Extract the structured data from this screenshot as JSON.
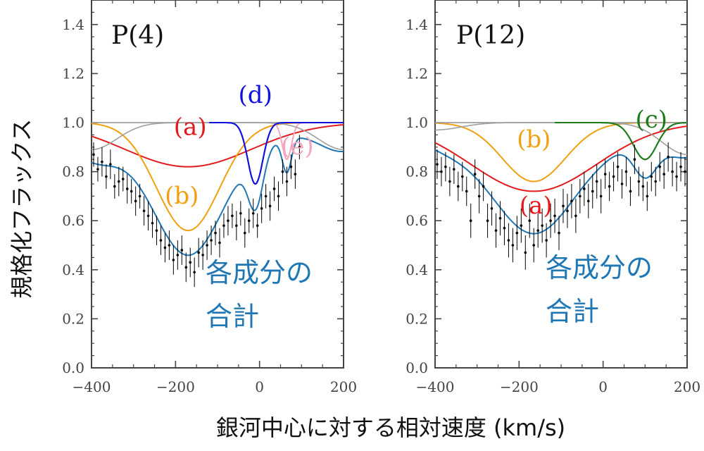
{
  "ylabel": "規格化フラックス",
  "xlabel": "銀河中心に対する相対速度 (km/s)",
  "colors": {
    "sum": "#1f77b4",
    "a": "#e31a1c",
    "b": "#f0a010",
    "c": "#1a7d1a",
    "d": "#1010e0",
    "e": "#f4a6bf",
    "continuum": "#a0a0a0",
    "data": "#000000",
    "frame": "#444444"
  },
  "chart_data": [
    {
      "type": "line",
      "title": "P(4)",
      "xlim": [
        -400,
        200
      ],
      "ylim": [
        0.0,
        1.5
      ],
      "xticks": [
        -400,
        -200,
        0,
        200
      ],
      "xtick_labels": [
        "−400",
        "−200",
        "0",
        "200"
      ],
      "yticks": [
        0.0,
        0.2,
        0.4,
        0.6,
        0.8,
        1.0,
        1.2,
        1.4
      ],
      "ytick_labels": [
        "0.0",
        "0.2",
        "0.4",
        "0.6",
        "0.8",
        "1.0",
        "1.2",
        "1.4"
      ],
      "grid": false,
      "components": [
        {
          "id": "a",
          "label": "(a)",
          "center": -170,
          "depth": 0.18,
          "sigma": 150,
          "range": [
            -400,
            200
          ],
          "label_at": [
            -165,
            0.95
          ],
          "label_color": "a"
        },
        {
          "id": "b",
          "label": "(b)",
          "center": -170,
          "depth": 0.44,
          "sigma": 75,
          "range": [
            -400,
            200
          ],
          "label_at": [
            -185,
            0.67
          ],
          "label_color": "b"
        },
        {
          "id": "d",
          "label": "(d)",
          "center": -10,
          "depth": 0.25,
          "sigma": 18,
          "range": [
            -120,
            200
          ],
          "label_at": [
            -10,
            1.08
          ],
          "label_color": "d"
        },
        {
          "id": "e",
          "label": "(e)",
          "center": 65,
          "depth": 0.15,
          "sigma": 11,
          "range": [
            20,
            200
          ],
          "label_at": [
            90,
            0.87
          ],
          "label_color": "e"
        },
        {
          "id": "cont",
          "label": "",
          "center": -400,
          "depth": 0.11,
          "sigma": 60,
          "range": [
            -400,
            200
          ],
          "label_at": null,
          "label_color": "continuum"
        },
        {
          "id": "cont2",
          "label": "",
          "center": 200,
          "depth": 0.11,
          "sigma": 60,
          "range": [
            -400,
            200
          ],
          "label_at": null,
          "label_color": "continuum"
        }
      ],
      "sum_label": [
        "各成分の",
        "合計"
      ],
      "data_points": {
        "x": [
          -395,
          -385,
          -375,
          -365,
          -355,
          -345,
          -335,
          -325,
          -315,
          -305,
          -295,
          -285,
          -275,
          -265,
          -255,
          -245,
          -235,
          -225,
          -215,
          -205,
          -195,
          -185,
          -175,
          -165,
          -155,
          -145,
          -135,
          -125,
          -115,
          -105,
          -95,
          -85,
          -75,
          -65,
          -55,
          -45,
          -35,
          -25,
          -15,
          -5,
          5,
          15,
          25,
          35,
          45,
          55,
          65,
          75,
          85,
          95
        ],
        "y": [
          0.87,
          0.81,
          0.84,
          0.78,
          0.83,
          0.74,
          0.76,
          0.77,
          0.73,
          0.72,
          0.68,
          0.7,
          0.64,
          0.62,
          0.59,
          0.56,
          0.52,
          0.49,
          0.5,
          0.44,
          0.46,
          0.48,
          0.41,
          0.43,
          0.39,
          0.47,
          0.46,
          0.5,
          0.52,
          0.55,
          0.51,
          0.58,
          0.6,
          0.62,
          0.58,
          0.63,
          0.55,
          0.6,
          0.63,
          0.58,
          0.65,
          0.7,
          0.66,
          0.73,
          0.7,
          0.8,
          0.76,
          0.82,
          0.79,
          0.9
        ],
        "err": [
          0.05,
          0.05,
          0.06,
          0.05,
          0.06,
          0.05,
          0.06,
          0.05,
          0.06,
          0.05,
          0.06,
          0.05,
          0.06,
          0.06,
          0.06,
          0.06,
          0.06,
          0.06,
          0.06,
          0.06,
          0.06,
          0.06,
          0.06,
          0.06,
          0.06,
          0.06,
          0.06,
          0.06,
          0.06,
          0.05,
          0.06,
          0.05,
          0.06,
          0.05,
          0.06,
          0.05,
          0.06,
          0.05,
          0.06,
          0.05,
          0.06,
          0.05,
          0.06,
          0.05,
          0.06,
          0.05,
          0.06,
          0.05,
          0.06,
          0.05
        ]
      }
    },
    {
      "type": "line",
      "title": "P(12)",
      "xlim": [
        -400,
        200
      ],
      "ylim": [
        0.0,
        1.5
      ],
      "xticks": [
        -400,
        -200,
        0,
        200
      ],
      "xtick_labels": [
        "−400",
        "−200",
        "0",
        "200"
      ],
      "yticks": [
        0.0,
        0.2,
        0.4,
        0.6,
        0.8,
        1.0,
        1.2,
        1.4
      ],
      "ytick_labels": [
        "0.0",
        "0.2",
        "0.4",
        "0.6",
        "0.8",
        "1.0",
        "1.2",
        "1.4"
      ],
      "grid": false,
      "components": [
        {
          "id": "a",
          "label": "(a)",
          "center": -165,
          "depth": 0.28,
          "sigma": 150,
          "range": [
            -400,
            200
          ],
          "label_at": [
            -160,
            0.63
          ],
          "label_color": "a"
        },
        {
          "id": "b",
          "label": "(b)",
          "center": -165,
          "depth": 0.24,
          "sigma": 75,
          "range": [
            -400,
            200
          ],
          "label_at": [
            -165,
            0.9
          ],
          "label_color": "b"
        },
        {
          "id": "c",
          "label": "(c)",
          "center": 100,
          "depth": 0.15,
          "sigma": 28,
          "range": [
            -115,
            200
          ],
          "label_at": [
            115,
            0.98
          ],
          "label_color": "c"
        },
        {
          "id": "cont",
          "label": "",
          "center": -400,
          "depth": 0.03,
          "sigma": 60,
          "range": [
            -400,
            200
          ],
          "label_at": null,
          "label_color": "continuum"
        },
        {
          "id": "cont2",
          "label": "",
          "center": 200,
          "depth": 0.13,
          "sigma": 60,
          "range": [
            -400,
            200
          ],
          "label_at": null,
          "label_color": "continuum"
        }
      ],
      "sum_label": [
        "各成分の",
        "合計"
      ],
      "data_points": {
        "x": [
          -395,
          -385,
          -375,
          -365,
          -355,
          -345,
          -335,
          -325,
          -315,
          -305,
          -295,
          -285,
          -275,
          -265,
          -255,
          -245,
          -235,
          -225,
          -215,
          -205,
          -195,
          -185,
          -175,
          -165,
          -155,
          -145,
          -135,
          -125,
          -115,
          -105,
          -95,
          -85,
          -75,
          -65,
          -55,
          -45,
          -35,
          -25,
          -15,
          -5,
          5,
          15,
          25,
          35,
          45,
          55,
          65,
          75,
          85,
          95,
          105,
          115,
          125,
          135,
          145,
          155,
          165,
          175,
          185,
          195
        ],
        "y": [
          0.83,
          0.8,
          0.82,
          0.76,
          0.81,
          0.74,
          0.78,
          0.72,
          0.6,
          0.79,
          0.7,
          0.74,
          0.6,
          0.65,
          0.56,
          0.61,
          0.57,
          0.52,
          0.5,
          0.55,
          0.58,
          0.47,
          0.6,
          0.5,
          0.56,
          0.58,
          0.52,
          0.6,
          0.62,
          0.55,
          0.66,
          0.64,
          0.68,
          0.62,
          0.7,
          0.73,
          0.68,
          0.72,
          0.76,
          0.7,
          0.79,
          0.74,
          0.78,
          0.82,
          0.75,
          0.8,
          0.72,
          0.85,
          0.76,
          0.74,
          0.7,
          0.78,
          0.76,
          0.82,
          0.79,
          0.86,
          0.8,
          0.78,
          0.82,
          0.8
        ],
        "err": [
          0.06,
          0.06,
          0.06,
          0.06,
          0.06,
          0.06,
          0.06,
          0.06,
          0.07,
          0.06,
          0.07,
          0.06,
          0.07,
          0.07,
          0.07,
          0.07,
          0.07,
          0.07,
          0.07,
          0.07,
          0.07,
          0.07,
          0.07,
          0.07,
          0.07,
          0.07,
          0.07,
          0.07,
          0.07,
          0.07,
          0.07,
          0.07,
          0.07,
          0.07,
          0.07,
          0.07,
          0.07,
          0.07,
          0.07,
          0.07,
          0.06,
          0.06,
          0.06,
          0.06,
          0.06,
          0.06,
          0.06,
          0.06,
          0.06,
          0.06,
          0.06,
          0.06,
          0.06,
          0.06,
          0.06,
          0.06,
          0.06,
          0.06,
          0.06,
          0.06
        ]
      }
    }
  ]
}
